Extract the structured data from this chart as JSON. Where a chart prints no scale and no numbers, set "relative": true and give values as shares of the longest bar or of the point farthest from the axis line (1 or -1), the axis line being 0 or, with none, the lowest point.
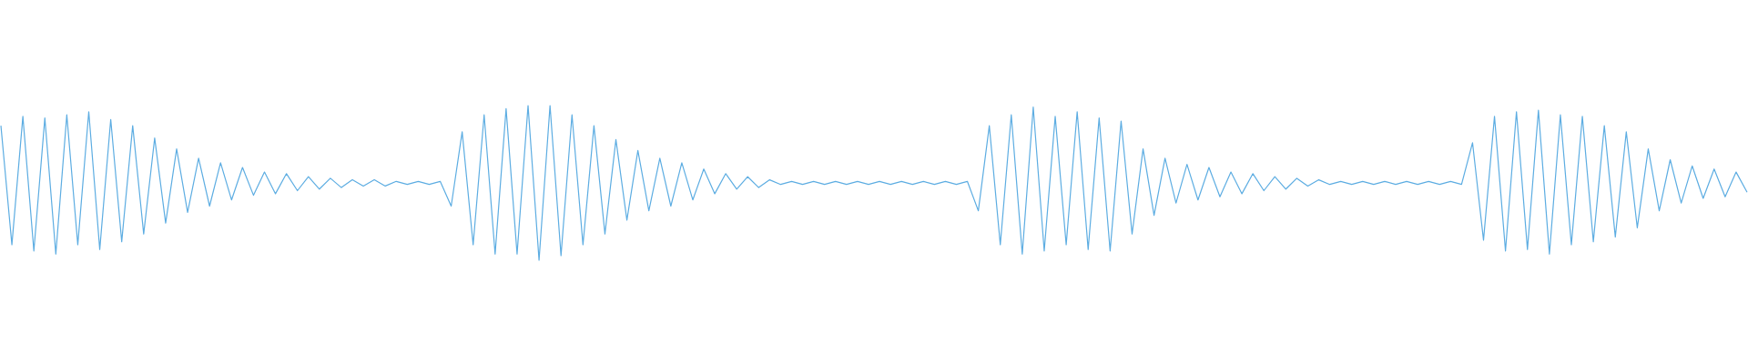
{
  "chart_data": {
    "type": "line",
    "relative": true,
    "categories": [
      null,
      null,
      null,
      null,
      null,
      null,
      null,
      null,
      null,
      null,
      null,
      null,
      null,
      null,
      null,
      null,
      null,
      null,
      null,
      null,
      null,
      null,
      null,
      null,
      null,
      null,
      null,
      null,
      null,
      null,
      null,
      null,
      null,
      null,
      null,
      null,
      null,
      null,
      null,
      null,
      null,
      null,
      null,
      null,
      null,
      null,
      null,
      null,
      null,
      null,
      null,
      null,
      null,
      null,
      null,
      null,
      null,
      null,
      null,
      null,
      null,
      null,
      null,
      null,
      null,
      null,
      null,
      null,
      null,
      null,
      null,
      null,
      null,
      null,
      null,
      null,
      null,
      null,
      null,
      null,
      null,
      null,
      null,
      null,
      null,
      null,
      null,
      null,
      null,
      null,
      null,
      null,
      null,
      null,
      null,
      null,
      null,
      null,
      null,
      null,
      null,
      null,
      null,
      null,
      null,
      null,
      null,
      null,
      null,
      null,
      null,
      null,
      null,
      null,
      null,
      null,
      null,
      null,
      null,
      null,
      null,
      null,
      null,
      null,
      null,
      null,
      null,
      null,
      null,
      null,
      null,
      null,
      null,
      null,
      null,
      null,
      null,
      null,
      null,
      null,
      null,
      null,
      null,
      null,
      null,
      null,
      null,
      null,
      null,
      null,
      null,
      null,
      null,
      null,
      null,
      null,
      null,
      null,
      null,
      null
    ],
    "series": [
      {
        "color": "#5dade2",
        "values": [
          0.87,
          0.1,
          0.93,
          0.06,
          0.92,
          0.04,
          0.94,
          0.1,
          0.96,
          0.07,
          0.91,
          0.12,
          0.87,
          0.17,
          0.79,
          0.24,
          0.72,
          0.31,
          0.66,
          0.35,
          0.63,
          0.39,
          0.6,
          0.42,
          0.57,
          0.43,
          0.56,
          0.45,
          0.54,
          0.46,
          0.53,
          0.47,
          0.52,
          0.48,
          0.52,
          0.48,
          0.51,
          0.49,
          0.51,
          0.49,
          0.51,
          0.35,
          0.83,
          0.1,
          0.94,
          0.04,
          0.98,
          0.04,
          1,
          0,
          1,
          0.03,
          0.94,
          0.1,
          0.87,
          0.17,
          0.78,
          0.26,
          0.71,
          0.32,
          0.66,
          0.35,
          0.63,
          0.39,
          0.59,
          0.43,
          0.56,
          0.46,
          0.54,
          0.47,
          0.52,
          0.49,
          0.51,
          0.49,
          0.51,
          0.49,
          0.51,
          0.49,
          0.51,
          0.49,
          0.51,
          0.49,
          0.51,
          0.49,
          0.51,
          0.49,
          0.51,
          0.49,
          0.51,
          0.32,
          0.87,
          0.1,
          0.94,
          0.04,
          0.99,
          0.06,
          0.93,
          0.1,
          0.96,
          0.07,
          0.92,
          0.06,
          0.9,
          0.17,
          0.72,
          0.29,
          0.66,
          0.37,
          0.62,
          0.39,
          0.6,
          0.41,
          0.57,
          0.43,
          0.56,
          0.45,
          0.54,
          0.46,
          0.53,
          0.48,
          0.52,
          0.49,
          0.51,
          0.49,
          0.51,
          0.49,
          0.51,
          0.49,
          0.51,
          0.49,
          0.51,
          0.49,
          0.51,
          0.49,
          0.76,
          0.13,
          0.93,
          0.06,
          0.96,
          0.07,
          0.97,
          0.04,
          0.94,
          0.1,
          0.93,
          0.12,
          0.87,
          0.15,
          0.83,
          0.21,
          0.72,
          0.32,
          0.65,
          0.37,
          0.61,
          0.4,
          0.59,
          0.41,
          0.57,
          0.44
        ]
      }
    ]
  }
}
